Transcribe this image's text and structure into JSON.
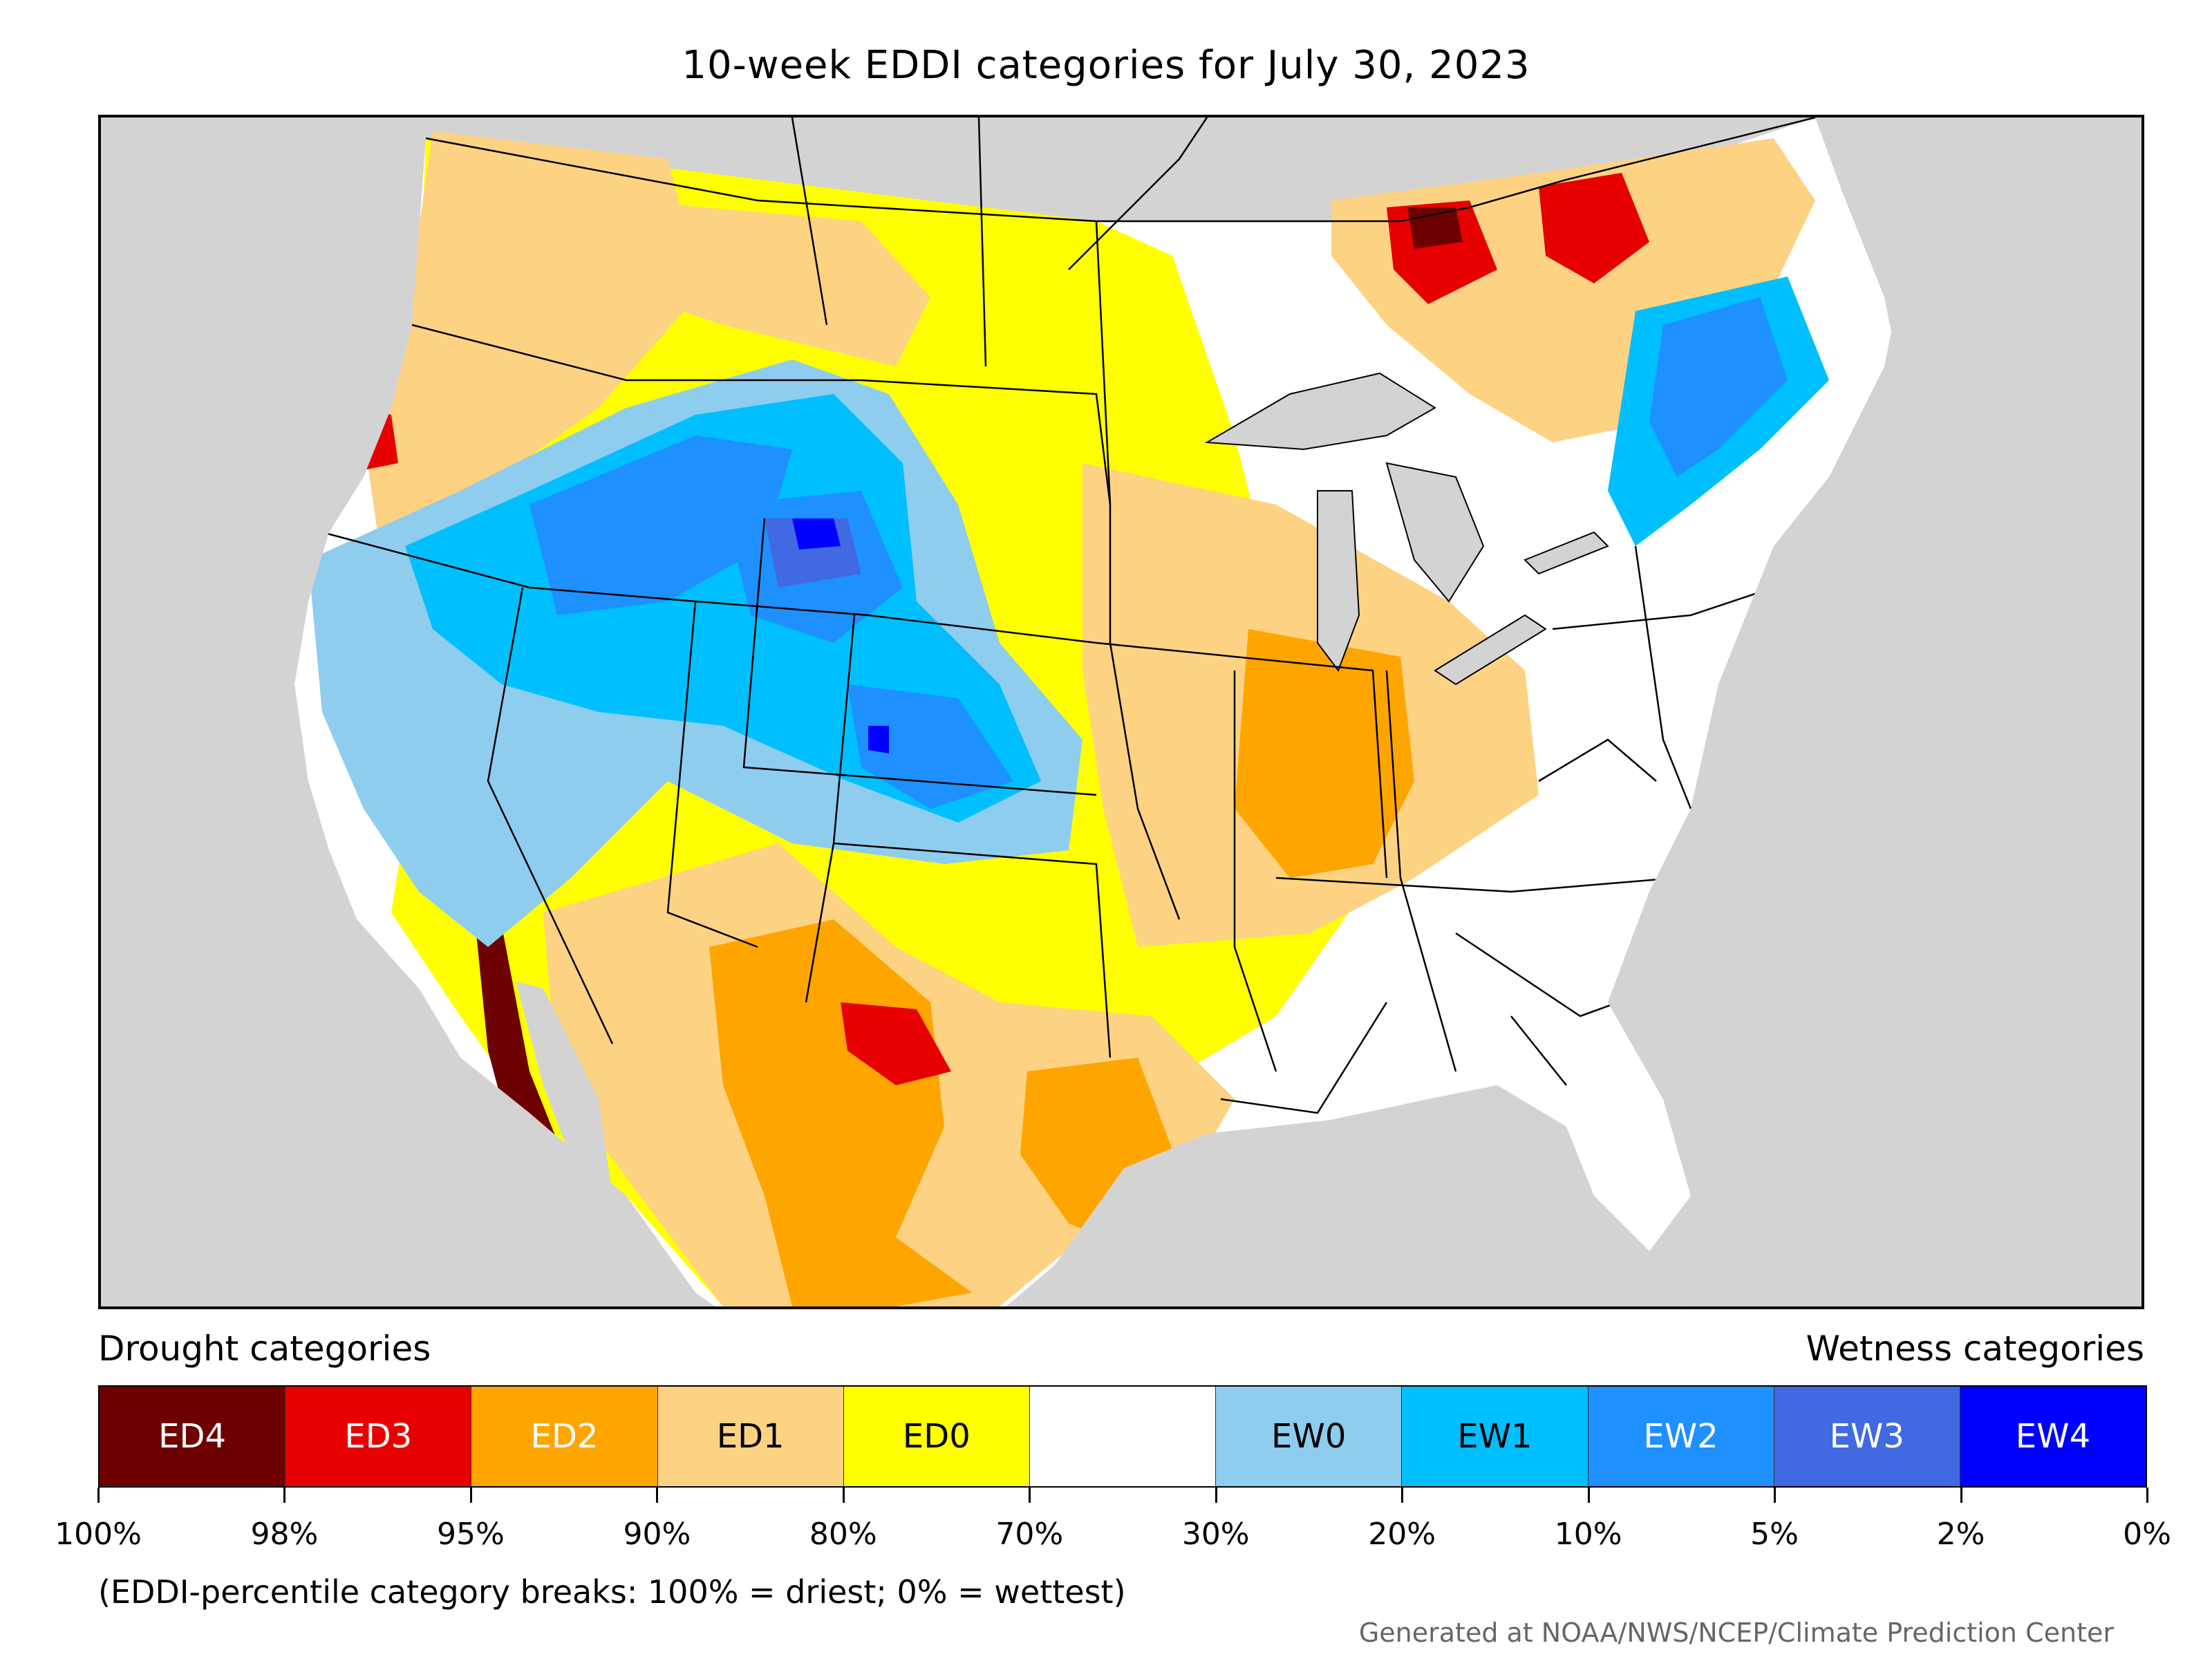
{
  "title": "10-week EDDI categories for July 30, 2023",
  "legend": {
    "drought_heading": "Drought categories",
    "wetness_heading": "Wetness categories",
    "bins": [
      {
        "label": "ED4",
        "color": "#6e0000",
        "text_color": "#ffffff"
      },
      {
        "label": "ED3",
        "color": "#e60000",
        "text_color": "#ffffff"
      },
      {
        "label": "ED2",
        "color": "#ffa500",
        "text_color": "#ffffff"
      },
      {
        "label": "ED1",
        "color": "#fdd283",
        "text_color": "#000000"
      },
      {
        "label": "ED0",
        "color": "#ffff00",
        "text_color": "#000000"
      },
      {
        "label": "",
        "color": "#ffffff",
        "text_color": "#000000"
      },
      {
        "label": "EW0",
        "color": "#8ecdee",
        "text_color": "#000000"
      },
      {
        "label": "EW1",
        "color": "#00bfff",
        "text_color": "#000000"
      },
      {
        "label": "EW2",
        "color": "#1e90ff",
        "text_color": "#ffffff"
      },
      {
        "label": "EW3",
        "color": "#4169e1",
        "text_color": "#ffffff"
      },
      {
        "label": "EW4",
        "color": "#0000ff",
        "text_color": "#ffffff"
      }
    ],
    "tick_labels": [
      "100%",
      "98%",
      "95%",
      "90%",
      "80%",
      "70%",
      "30%",
      "20%",
      "10%",
      "5%",
      "2%",
      "0%"
    ]
  },
  "note": "(EDDI-percentile category breaks: 100% = driest; 0% = wettest)",
  "credit": "Generated at NOAA/NWS/NCEP/Climate Prediction Center"
}
